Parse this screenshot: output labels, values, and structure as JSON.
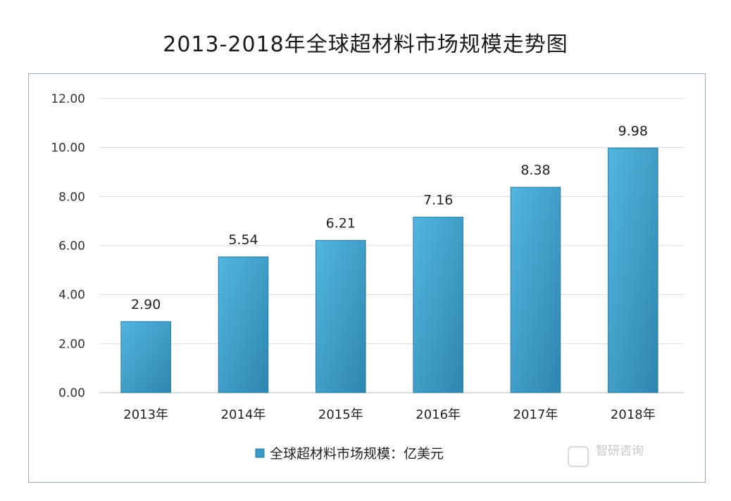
{
  "chart_data": {
    "type": "bar",
    "title": "2013-2018年全球超材料市场规模走势图",
    "categories": [
      "2013年",
      "2014年",
      "2015年",
      "2016年",
      "2017年",
      "2018年"
    ],
    "series": [
      {
        "name": "全球超材料市场规模：亿美元",
        "values": [
          2.9,
          5.54,
          6.21,
          7.16,
          8.38,
          9.98
        ],
        "color": "#3a9bc6"
      }
    ],
    "ylim": [
      0,
      12
    ],
    "yticks": [
      "0.00",
      "2.00",
      "4.00",
      "6.00",
      "8.00",
      "10.00",
      "12.00"
    ],
    "data_labels": [
      "2.90",
      "5.54",
      "6.21",
      "7.16",
      "8.38",
      "9.98"
    ],
    "grid": true,
    "legend": "bottom"
  },
  "watermark": {
    "text": "智研咨询"
  }
}
